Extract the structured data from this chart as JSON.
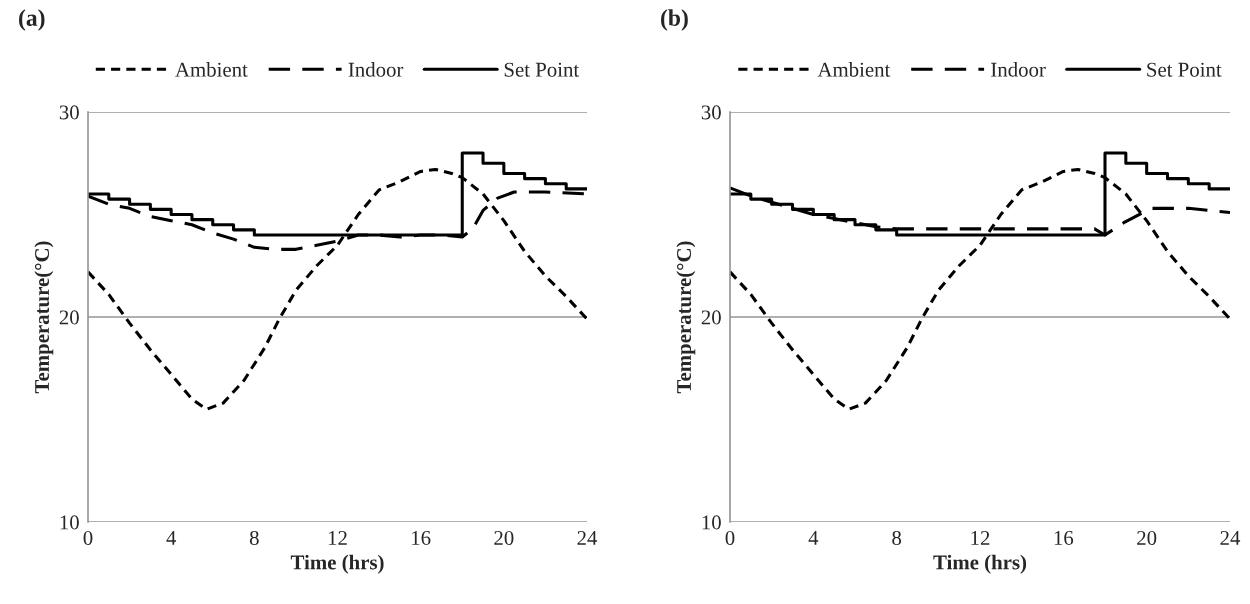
{
  "chart_data": [
    {
      "type": "line",
      "title": "(a)",
      "xlabel": "Time (hrs)",
      "ylabel": "Temperature(°C)",
      "xlim": [
        0,
        24
      ],
      "xticks": [
        0,
        4,
        8,
        12,
        16,
        20,
        24
      ],
      "ylim": [
        10,
        30
      ],
      "yticks": [
        10,
        20,
        30
      ],
      "grid": "y",
      "legend": "top",
      "series": [
        {
          "name": "Ambient",
          "color": "#000000",
          "line_style": "dotted",
          "x": [
            0,
            1,
            2,
            3,
            4,
            5,
            5.7,
            6.5,
            7.5,
            8.5,
            9.2,
            10,
            11,
            12,
            13,
            14,
            15,
            16,
            16.7,
            17.5,
            18,
            19,
            20,
            21,
            22,
            23,
            24
          ],
          "values": [
            22.2,
            21.1,
            19.7,
            18.4,
            17.2,
            16.0,
            15.5,
            15.8,
            16.9,
            18.5,
            19.9,
            21.3,
            22.5,
            23.5,
            25.0,
            26.2,
            26.6,
            27.1,
            27.2,
            27.0,
            26.8,
            26.0,
            24.7,
            23.2,
            22.0,
            21.0,
            19.9
          ]
        },
        {
          "name": "Indoor",
          "color": "#000000",
          "line_style": "dashed",
          "x": [
            0,
            1,
            2,
            3,
            4,
            5,
            6,
            7,
            8,
            9,
            10,
            11,
            12,
            13,
            14,
            15,
            16,
            17,
            18,
            18.5,
            19,
            19.7,
            20.5,
            22,
            24
          ],
          "values": [
            25.9,
            25.5,
            25.3,
            24.9,
            24.7,
            24.5,
            24.1,
            23.8,
            23.4,
            23.3,
            23.3,
            23.5,
            23.7,
            24.0,
            24.0,
            23.9,
            24.0,
            24.0,
            23.9,
            24.3,
            25.2,
            25.8,
            26.1,
            26.1,
            26.0
          ]
        },
        {
          "name": "Set Point",
          "type": "step",
          "color": "#000000",
          "line_style": "solid",
          "x": [
            0,
            1,
            2,
            3,
            4,
            5,
            6,
            7,
            8,
            18,
            19,
            20,
            21,
            22,
            23,
            24
          ],
          "values": [
            26,
            25.75,
            25.5,
            25.25,
            25,
            24.75,
            24.5,
            24.25,
            24,
            28,
            27.5,
            27,
            26.75,
            26.5,
            26.25,
            26.25
          ]
        }
      ]
    },
    {
      "type": "line",
      "title": "(b)",
      "xlabel": "Time (hrs)",
      "ylabel": "Temperature(°C)",
      "xlim": [
        0,
        24
      ],
      "xticks": [
        0,
        4,
        8,
        12,
        16,
        20,
        24
      ],
      "ylim": [
        10,
        30
      ],
      "yticks": [
        10,
        20,
        30
      ],
      "grid": "y",
      "legend": "top",
      "series": [
        {
          "name": "Ambient",
          "color": "#000000",
          "line_style": "dotted",
          "x": [
            0,
            1,
            2,
            3,
            4,
            5,
            5.7,
            6.5,
            7.5,
            8.5,
            9.2,
            10,
            11,
            12,
            13,
            14,
            15,
            16,
            16.7,
            17.5,
            18,
            19,
            20,
            21,
            22,
            23,
            24
          ],
          "values": [
            22.2,
            21.1,
            19.7,
            18.4,
            17.2,
            16.0,
            15.5,
            15.8,
            16.9,
            18.5,
            19.9,
            21.3,
            22.5,
            23.5,
            25.0,
            26.2,
            26.6,
            27.1,
            27.2,
            27.0,
            26.8,
            26.0,
            24.7,
            23.2,
            22.0,
            21.0,
            19.9
          ]
        },
        {
          "name": "Indoor",
          "color": "#000000",
          "line_style": "dashed",
          "x": [
            0,
            1,
            2,
            3,
            4,
            5,
            6,
            7,
            8,
            10,
            12,
            14,
            16,
            17.5,
            18,
            18.9,
            20.2,
            22,
            24
          ],
          "values": [
            26.3,
            25.9,
            25.6,
            25.3,
            25.0,
            24.8,
            24.6,
            24.4,
            24.3,
            24.3,
            24.3,
            24.3,
            24.3,
            24.3,
            24.0,
            24.6,
            25.3,
            25.3,
            25.1
          ]
        },
        {
          "name": "Set Point",
          "type": "step",
          "color": "#000000",
          "line_style": "solid",
          "x": [
            0,
            1,
            2,
            3,
            4,
            5,
            6,
            7,
            8,
            18,
            19,
            20,
            21,
            22,
            23,
            24
          ],
          "values": [
            26,
            25.75,
            25.5,
            25.25,
            25,
            24.75,
            24.5,
            24.25,
            24,
            28,
            27.5,
            27,
            26.75,
            26.5,
            26.25,
            26.25
          ]
        }
      ]
    }
  ]
}
